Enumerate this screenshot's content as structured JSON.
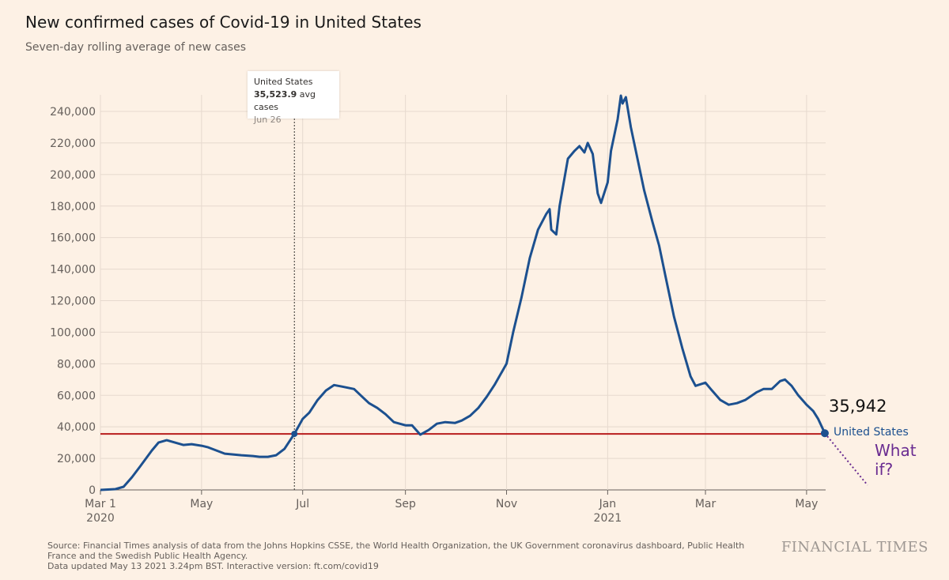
{
  "header": {
    "title": "New confirmed cases of Covid-19 in United States",
    "subtitle": "Seven-day rolling average of new cases"
  },
  "tooltip": {
    "country": "United States",
    "value": "35,523.9",
    "unit": "avg cases",
    "date": "Jun 26"
  },
  "annotations": {
    "last_value": "35,942",
    "series_label": "United States",
    "what_if": "What if?"
  },
  "footer": {
    "source": "Source: Financial Times analysis of data from the Johns Hopkins CSSE, the World Health Organization, the UK Government coronavirus dashboard, Public Health France and the Swedish Public Health Agency.",
    "updated": "Data updated May 13 2021 3.24pm BST. Interactive version: ft.com/covid19",
    "logo": "FINANCIAL TIMES"
  },
  "colors": {
    "series": "#1c508f",
    "reference_line": "#b81c1c",
    "what_if": "#6a2c91",
    "grid": "#e6d9ce"
  },
  "chart_data": {
    "type": "line",
    "title": "New confirmed cases of Covid-19 in United States",
    "subtitle": "Seven-day rolling average of new cases",
    "ylim": [
      0,
      250000
    ],
    "y_ticks": [
      "0",
      "20,000",
      "40,000",
      "60,000",
      "80,000",
      "100,000",
      "120,000",
      "140,000",
      "160,000",
      "180,000",
      "200,000",
      "220,000",
      "240,000"
    ],
    "x_ticks": [
      {
        "date": "2020-03-01",
        "label": "Mar 1",
        "sub": "2020"
      },
      {
        "date": "2020-05-01",
        "label": "May"
      },
      {
        "date": "2020-07-01",
        "label": "Jul"
      },
      {
        "date": "2020-09-01",
        "label": "Sep"
      },
      {
        "date": "2020-11-01",
        "label": "Nov"
      },
      {
        "date": "2021-01-01",
        "label": "Jan",
        "sub": "2021"
      },
      {
        "date": "2021-03-01",
        "label": "Mar"
      },
      {
        "date": "2021-05-01",
        "label": "May"
      }
    ],
    "grid": true,
    "reference_value": 35523.9,
    "highlight": {
      "date": "2020-06-26",
      "value": 35523.9
    },
    "what_if_end": {
      "date": "2021-05-38",
      "value": 3000
    },
    "series": [
      {
        "name": "United States",
        "points": [
          [
            "2020-03-01",
            0
          ],
          [
            "2020-03-10",
            500
          ],
          [
            "2020-03-15",
            2000
          ],
          [
            "2020-03-20",
            8000
          ],
          [
            "2020-03-25",
            15000
          ],
          [
            "2020-04-01",
            25000
          ],
          [
            "2020-04-05",
            30000
          ],
          [
            "2020-04-10",
            31500
          ],
          [
            "2020-04-15",
            30000
          ],
          [
            "2020-04-20",
            28500
          ],
          [
            "2020-04-25",
            29000
          ],
          [
            "2020-05-01",
            28000
          ],
          [
            "2020-05-05",
            27000
          ],
          [
            "2020-05-10",
            25000
          ],
          [
            "2020-05-15",
            23000
          ],
          [
            "2020-05-20",
            22500
          ],
          [
            "2020-05-25",
            22000
          ],
          [
            "2020-06-01",
            21500
          ],
          [
            "2020-06-05",
            21000
          ],
          [
            "2020-06-10",
            21000
          ],
          [
            "2020-06-15",
            22000
          ],
          [
            "2020-06-20",
            26000
          ],
          [
            "2020-06-26",
            35524
          ],
          [
            "2020-07-01",
            45000
          ],
          [
            "2020-07-05",
            49000
          ],
          [
            "2020-07-10",
            57000
          ],
          [
            "2020-07-15",
            63000
          ],
          [
            "2020-07-20",
            66500
          ],
          [
            "2020-07-25",
            65500
          ],
          [
            "2020-08-01",
            64000
          ],
          [
            "2020-08-05",
            60000
          ],
          [
            "2020-08-10",
            55000
          ],
          [
            "2020-08-15",
            52000
          ],
          [
            "2020-08-20",
            48000
          ],
          [
            "2020-08-25",
            43000
          ],
          [
            "2020-09-01",
            41000
          ],
          [
            "2020-09-05",
            41000
          ],
          [
            "2020-09-10",
            35000
          ],
          [
            "2020-09-15",
            38000
          ],
          [
            "2020-09-20",
            42000
          ],
          [
            "2020-09-25",
            43000
          ],
          [
            "2020-10-01",
            42500
          ],
          [
            "2020-10-05",
            44000
          ],
          [
            "2020-10-10",
            47000
          ],
          [
            "2020-10-15",
            52000
          ],
          [
            "2020-10-20",
            59000
          ],
          [
            "2020-10-25",
            67000
          ],
          [
            "2020-11-01",
            80000
          ],
          [
            "2020-11-05",
            100000
          ],
          [
            "2020-11-10",
            122000
          ],
          [
            "2020-11-15",
            147000
          ],
          [
            "2020-11-20",
            165000
          ],
          [
            "2020-11-25",
            175000
          ],
          [
            "2020-11-27",
            178000
          ],
          [
            "2020-11-28",
            165000
          ],
          [
            "2020-12-01",
            162000
          ],
          [
            "2020-12-03",
            180000
          ],
          [
            "2020-12-08",
            210000
          ],
          [
            "2020-12-12",
            215000
          ],
          [
            "2020-12-15",
            218000
          ],
          [
            "2020-12-18",
            214000
          ],
          [
            "2020-12-20",
            220000
          ],
          [
            "2020-12-23",
            213000
          ],
          [
            "2020-12-26",
            188000
          ],
          [
            "2020-12-28",
            182000
          ],
          [
            "2021-01-01",
            195000
          ],
          [
            "2021-01-03",
            215000
          ],
          [
            "2021-01-07",
            235000
          ],
          [
            "2021-01-09",
            250000
          ],
          [
            "2021-01-10",
            245000
          ],
          [
            "2021-01-12",
            249000
          ],
          [
            "2021-01-15",
            230000
          ],
          [
            "2021-01-19",
            210000
          ],
          [
            "2021-01-23",
            190000
          ],
          [
            "2021-01-28",
            170000
          ],
          [
            "2021-02-01",
            155000
          ],
          [
            "2021-02-05",
            135000
          ],
          [
            "2021-02-10",
            110000
          ],
          [
            "2021-02-15",
            90000
          ],
          [
            "2021-02-20",
            72000
          ],
          [
            "2021-02-23",
            66000
          ],
          [
            "2021-03-01",
            68000
          ],
          [
            "2021-03-05",
            63000
          ],
          [
            "2021-03-10",
            57000
          ],
          [
            "2021-03-15",
            54000
          ],
          [
            "2021-03-20",
            55000
          ],
          [
            "2021-03-25",
            57000
          ],
          [
            "2021-04-01",
            62000
          ],
          [
            "2021-04-05",
            64000
          ],
          [
            "2021-04-10",
            64000
          ],
          [
            "2021-04-15",
            69000
          ],
          [
            "2021-04-18",
            70000
          ],
          [
            "2021-04-22",
            66000
          ],
          [
            "2021-04-26",
            60000
          ],
          [
            "2021-05-01",
            54000
          ],
          [
            "2021-05-05",
            50000
          ],
          [
            "2021-05-08",
            45000
          ],
          [
            "2021-05-12",
            35942
          ]
        ]
      }
    ]
  }
}
